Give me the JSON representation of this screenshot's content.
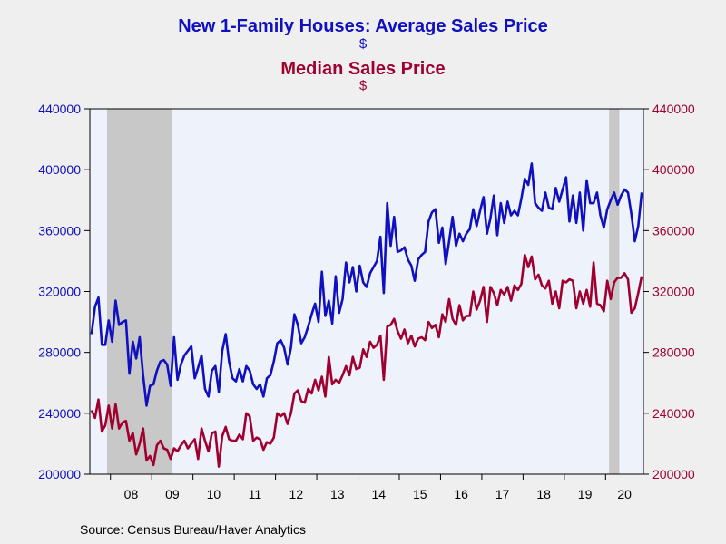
{
  "chart_data": {
    "type": "line",
    "title": "New 1-Family Houses: Average Sales Price",
    "title_unit": "$",
    "subtitle": "Median Sales Price",
    "subtitle_unit": "$",
    "source": "Source:  Census Bureau/Haver Analytics",
    "colors": {
      "average": "#1010c0",
      "median": "#a00030",
      "recession": "#c8c8c8",
      "plot_bg": "#eef3fb"
    },
    "x_start": "2007-07",
    "x_ticks": [
      "08",
      "09",
      "10",
      "11",
      "12",
      "13",
      "14",
      "15",
      "16",
      "17",
      "18",
      "19",
      "20"
    ],
    "ylim": [
      200000,
      440000
    ],
    "y_ticks": [
      200000,
      240000,
      280000,
      320000,
      360000,
      400000,
      440000
    ],
    "recessions": [
      [
        "2007-12",
        "2009-06"
      ],
      [
        "2020-02",
        "2020-04"
      ]
    ],
    "series": [
      {
        "name": "Average Sales Price",
        "values": [
          292000,
          310000,
          316000,
          285000,
          285000,
          301000,
          287000,
          314000,
          298000,
          300000,
          301000,
          266000,
          287000,
          276000,
          290000,
          265000,
          245000,
          258000,
          259000,
          268000,
          274000,
          275000,
          272000,
          258000,
          290000,
          262000,
          272000,
          278000,
          281000,
          284000,
          263000,
          270000,
          278000,
          256000,
          251000,
          268000,
          271000,
          254000,
          281000,
          292000,
          274000,
          263000,
          261000,
          269000,
          261000,
          271000,
          268000,
          259000,
          256000,
          259000,
          251000,
          263000,
          265000,
          274000,
          286000,
          288000,
          283000,
          272000,
          283000,
          305000,
          298000,
          286000,
          290000,
          297000,
          305000,
          312000,
          300000,
          333000,
          304000,
          314000,
          299000,
          330000,
          306000,
          315000,
          339000,
          326000,
          336000,
          320000,
          337000,
          326000,
          323000,
          332000,
          336000,
          340000,
          356000,
          319000,
          378000,
          350000,
          369000,
          346000,
          347000,
          349000,
          341000,
          337000,
          327000,
          341000,
          344000,
          346000,
          366000,
          372000,
          374000,
          352000,
          362000,
          338000,
          353000,
          369000,
          350000,
          358000,
          353000,
          358000,
          361000,
          374000,
          363000,
          373000,
          382000,
          358000,
          368000,
          383000,
          357000,
          378000,
          365000,
          379000,
          370000,
          373000,
          370000,
          381000,
          394000,
          390000,
          404000,
          378000,
          375000,
          373000,
          385000,
          375000,
          374000,
          388000,
          379000,
          387000,
          395000,
          366000,
          383000,
          365000,
          385000,
          360000,
          393000,
          378000,
          378000,
          385000,
          370000,
          362000,
          374000,
          380000,
          385000,
          377000,
          383000,
          387000,
          385000,
          371000,
          353000,
          363000,
          385000
        ]
      },
      {
        "name": "Median Sales Price",
        "values": [
          242000,
          237000,
          249000,
          228000,
          232000,
          245000,
          230000,
          246000,
          230000,
          234000,
          235000,
          222000,
          227000,
          213000,
          220000,
          230000,
          209000,
          212000,
          206000,
          219000,
          222000,
          217000,
          216000,
          210000,
          217000,
          215000,
          219000,
          222000,
          217000,
          220000,
          223000,
          210000,
          230000,
          222000,
          215000,
          227000,
          228000,
          205000,
          225000,
          231000,
          223000,
          222000,
          222000,
          226000,
          223000,
          240000,
          238000,
          222000,
          224000,
          223000,
          216000,
          221000,
          220000,
          224000,
          240000,
          238000,
          240000,
          233000,
          240000,
          253000,
          255000,
          248000,
          247000,
          256000,
          253000,
          262000,
          255000,
          264000,
          251000,
          277000,
          259000,
          262000,
          260000,
          265000,
          271000,
          265000,
          277000,
          269000,
          270000,
          282000,
          277000,
          287000,
          283000,
          285000,
          291000,
          262000,
          297000,
          298000,
          302000,
          294000,
          289000,
          295000,
          286000,
          291000,
          284000,
          289000,
          290000,
          288000,
          300000,
          296000,
          298000,
          290000,
          305000,
          300000,
          315000,
          302000,
          298000,
          311000,
          301000,
          304000,
          304000,
          320000,
          308000,
          314000,
          323000,
          300000,
          323000,
          319000,
          311000,
          321000,
          318000,
          323000,
          314000,
          324000,
          321000,
          325000,
          344000,
          336000,
          343000,
          328000,
          331000,
          324000,
          322000,
          327000,
          312000,
          320000,
          309000,
          327000,
          326000,
          328000,
          327000,
          309000,
          320000,
          312000,
          321000,
          310000,
          339000,
          312000,
          311000,
          307000,
          327000,
          315000,
          326000,
          329000,
          329000,
          332000,
          328000,
          306000,
          309000,
          319000,
          330000
        ]
      }
    ]
  }
}
